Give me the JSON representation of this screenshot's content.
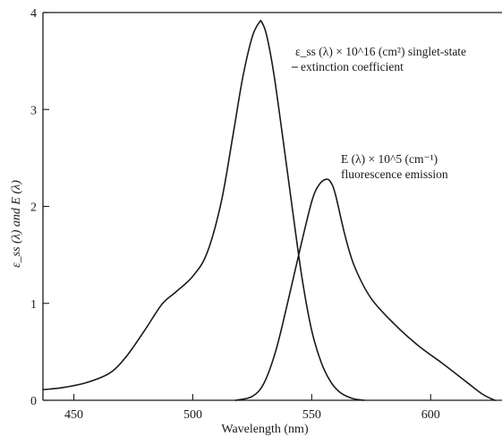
{
  "chart_data": {
    "type": "line",
    "title": "",
    "xlabel": "Wavelength (nm)",
    "ylabel": "ε_ss (λ) and E (λ)",
    "xlim": [
      437,
      630
    ],
    "ylim": [
      0,
      4
    ],
    "xticks": [
      450,
      500,
      550,
      600
    ],
    "yticks": [
      0,
      1,
      2,
      3,
      4
    ],
    "grid": false,
    "legend": "none",
    "series": [
      {
        "x": [
          437,
          445,
          455,
          465,
          472,
          480,
          487,
          493,
          500,
          506,
          512,
          517,
          521,
          525,
          528,
          529,
          531,
          534,
          538,
          542,
          546,
          550,
          554,
          558,
          562,
          567,
          572
        ],
        "y": [
          0.11,
          0.13,
          0.18,
          0.28,
          0.45,
          0.73,
          0.99,
          1.12,
          1.28,
          1.52,
          2.05,
          2.75,
          3.33,
          3.75,
          3.9,
          3.9,
          3.77,
          3.38,
          2.68,
          1.95,
          1.25,
          0.72,
          0.39,
          0.19,
          0.08,
          0.02,
          0.0
        ]
      },
      {
        "x": [
          518,
          525,
          530,
          535,
          540,
          545,
          550,
          553,
          556,
          558,
          560,
          564,
          568,
          575,
          585,
          595,
          605,
          615,
          622,
          627
        ],
        "y": [
          0.0,
          0.04,
          0.18,
          0.52,
          1.02,
          1.55,
          2.05,
          2.22,
          2.28,
          2.25,
          2.12,
          1.7,
          1.38,
          1.05,
          0.78,
          0.56,
          0.38,
          0.19,
          0.06,
          0.0
        ]
      }
    ],
    "annotations": [
      {
        "lines": [
          "ε_ss (λ) × 10^16 (cm²) singlet-state",
          "extinction  coefficient"
        ],
        "series": 0
      },
      {
        "lines": [
          "E (λ) × 10^5 (cm⁻¹)",
          "fluorescence emission"
        ],
        "series": 1
      }
    ]
  },
  "colors": {
    "curve": "#1a1a1a",
    "background": "#ffffff"
  }
}
